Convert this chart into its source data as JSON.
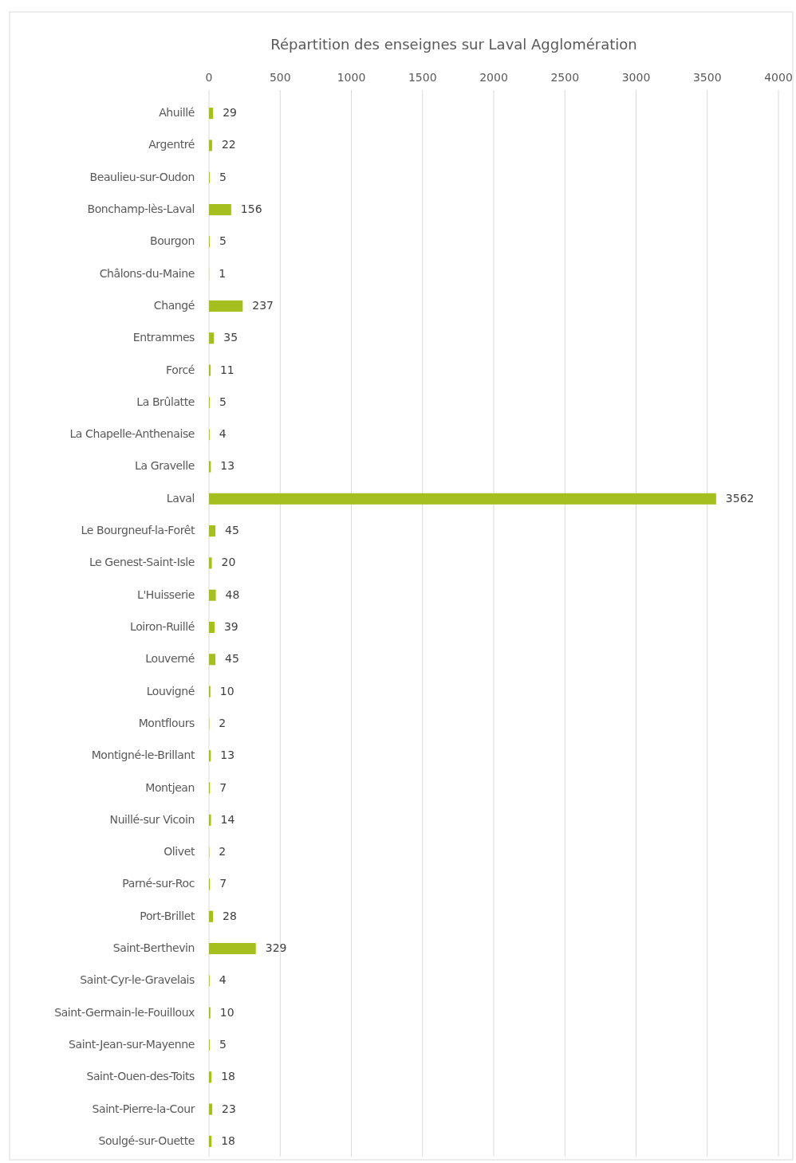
{
  "chart_data": {
    "type": "bar",
    "orientation": "horizontal",
    "title": "Répartition des enseignes sur Laval Agglomération",
    "categories": [
      "Ahuillé",
      "Argentré",
      "Beaulieu-sur-Oudon",
      "Bonchamp-lès-Laval",
      "Bourgon",
      "Châlons-du-Maine",
      "Changé",
      "Entrammes",
      "Forcé",
      "La Brûlatte",
      "La Chapelle-Anthenaise",
      "La Gravelle",
      "Laval",
      "Le Bourgneuf-la-Forêt",
      "Le Genest-Saint-Isle",
      "L'Huisserie",
      "Loiron-Ruillé",
      "Louverné",
      "Louvigné",
      "Montflours",
      "Montigné-le-Brillant",
      "Montjean",
      "Nuillé-sur Vicoin",
      "Olivet",
      "Parné-sur-Roc",
      "Port-Brillet",
      "Saint-Berthevin",
      "Saint-Cyr-le-Gravelais",
      "Saint-Germain-le-Fouilloux",
      "Saint-Jean-sur-Mayenne",
      "Saint-Ouen-des-Toits",
      "Saint-Pierre-la-Cour",
      "Soulgé-sur-Ouette"
    ],
    "values": [
      29,
      22,
      5,
      156,
      5,
      1,
      237,
      35,
      11,
      5,
      4,
      13,
      3562,
      45,
      20,
      48,
      39,
      45,
      10,
      2,
      13,
      7,
      14,
      2,
      7,
      28,
      329,
      4,
      10,
      5,
      18,
      23,
      18
    ],
    "color": "#a4bf1f",
    "xlim": [
      0,
      4000
    ],
    "xticks": [
      0,
      500,
      1000,
      1500,
      2000,
      2500,
      3000,
      3500,
      4000
    ],
    "grid": "x",
    "data_labels": true
  }
}
